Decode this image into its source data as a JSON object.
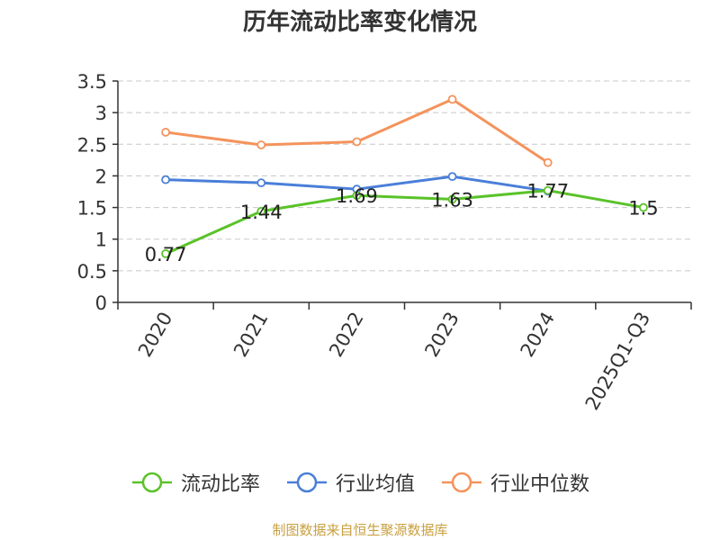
{
  "chart_data": {
    "type": "line",
    "title": "历年流动比率变化情况",
    "categories": [
      "2020",
      "2021",
      "2022",
      "2023",
      "2024",
      "2025Q1-Q3"
    ],
    "ylim": [
      0,
      3.5
    ],
    "yticks": [
      "0",
      "0.5",
      "1",
      "1.5",
      "2",
      "2.5",
      "3",
      "3.5"
    ],
    "grid": true,
    "legend_position": "bottom",
    "series": [
      {
        "name": "流动比率",
        "color": "#5ac229",
        "values": [
          0.77,
          1.44,
          1.69,
          1.63,
          1.77,
          1.5
        ],
        "labels": [
          "0.77",
          "1.44",
          "1.69",
          "1.63",
          "1.77",
          "1.5"
        ]
      },
      {
        "name": "行业均值",
        "color": "#4a7fd8",
        "values": [
          1.94,
          1.89,
          1.79,
          1.99,
          1.76,
          null
        ],
        "labels": []
      },
      {
        "name": "行业中位数",
        "color": "#f4935c",
        "values": [
          2.69,
          2.49,
          2.54,
          3.21,
          2.21,
          null
        ],
        "labels": []
      }
    ]
  },
  "source": "制图数据来自恒生聚源数据库"
}
